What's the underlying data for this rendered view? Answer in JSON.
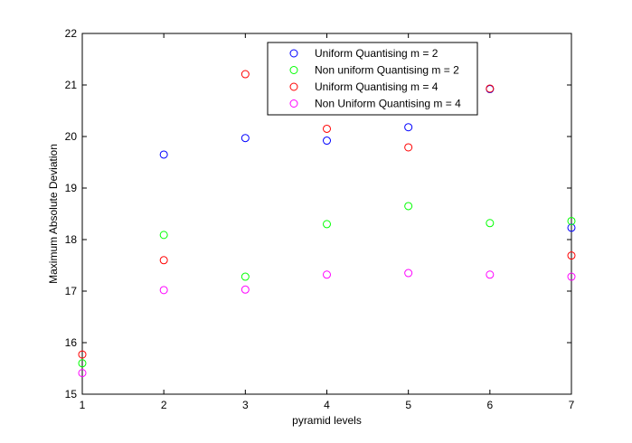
{
  "chart_data": {
    "type": "scatter",
    "title": "",
    "xlabel": "pyramid levels",
    "ylabel": "Maximum Absolute Deviation",
    "xlim": [
      1,
      7
    ],
    "ylim": [
      15,
      22
    ],
    "xticks": [
      1,
      2,
      3,
      4,
      5,
      6,
      7
    ],
    "yticks": [
      15,
      16,
      17,
      18,
      19,
      20,
      21,
      22
    ],
    "grid": false,
    "legend_position": "top-right",
    "marker": "open-circle",
    "series": [
      {
        "name": "Uniform Quantising m = 2",
        "color": "#0000ff",
        "x": [
          2,
          3,
          4,
          5,
          6,
          7
        ],
        "y": [
          19.65,
          19.97,
          19.92,
          20.18,
          20.92,
          18.23
        ]
      },
      {
        "name": "Non uniform Quantising m = 2",
        "color": "#00ff00",
        "x": [
          1,
          2,
          3,
          4,
          5,
          6,
          7
        ],
        "y": [
          15.6,
          18.09,
          17.28,
          18.3,
          18.65,
          18.32,
          18.36
        ]
      },
      {
        "name": "Uniform Quantising m = 4",
        "color": "#ff0000",
        "x": [
          1,
          2,
          3,
          4,
          5,
          6,
          7
        ],
        "y": [
          15.77,
          17.6,
          21.21,
          20.15,
          19.79,
          20.93,
          17.69
        ]
      },
      {
        "name": "Non Uniform Quantising m = 4",
        "color": "#ff00ff",
        "x": [
          1,
          2,
          3,
          4,
          5,
          6,
          7
        ],
        "y": [
          15.41,
          17.02,
          17.03,
          17.32,
          17.35,
          17.32,
          17.28
        ]
      }
    ]
  }
}
